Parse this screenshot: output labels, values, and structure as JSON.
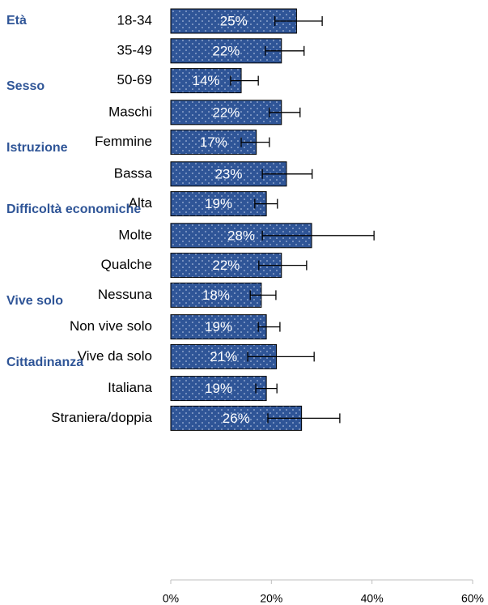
{
  "chart_data": {
    "type": "bar",
    "orientation": "horizontal",
    "color": "#2f5597",
    "groups": [
      {
        "name": "Età",
        "categories": [
          "18-34",
          "35-49",
          "50-69"
        ],
        "values": [
          25,
          22,
          14
        ],
        "value_labels": [
          "25%",
          "22%",
          "14%"
        ],
        "ci_low": [
          20.7,
          18.8,
          11.9
        ],
        "ci_high": [
          30.1,
          26.5,
          17.4
        ]
      },
      {
        "name": "Sesso",
        "categories": [
          "Maschi",
          "Femmine"
        ],
        "values": [
          22,
          17
        ],
        "value_labels": [
          "22%",
          "17%"
        ],
        "ci_low": [
          19.6,
          14.0
        ],
        "ci_high": [
          25.7,
          19.6
        ]
      },
      {
        "name": "Istruzione",
        "categories": [
          "Bassa",
          "Alta"
        ],
        "values": [
          23,
          19
        ],
        "value_labels": [
          "23%",
          "19%"
        ],
        "ci_low": [
          18.2,
          16.7
        ],
        "ci_high": [
          28.1,
          21.2
        ]
      },
      {
        "name": "Difficoltà economiche",
        "categories": [
          "Molte",
          "Qualche",
          "Nessuna"
        ],
        "values": [
          28,
          22,
          18
        ],
        "value_labels": [
          "28%",
          "22%",
          "18%"
        ],
        "ci_low": [
          18.2,
          17.5,
          15.8
        ],
        "ci_high": [
          40.4,
          27.0,
          20.9
        ]
      },
      {
        "name": "Vive solo",
        "categories": [
          "Non vive solo",
          "Vive da solo"
        ],
        "values": [
          19,
          21
        ],
        "value_labels": [
          "19%",
          "21%"
        ],
        "ci_low": [
          17.4,
          15.3
        ],
        "ci_high": [
          21.7,
          28.5
        ]
      },
      {
        "name": "Cittadinanza",
        "categories": [
          "Italiana",
          "Straniera/doppia"
        ],
        "values": [
          19,
          26
        ],
        "value_labels": [
          "19%",
          "26%"
        ],
        "ci_low": [
          16.9,
          19.3
        ],
        "ci_high": [
          21.1,
          33.6
        ]
      }
    ],
    "xlim": [
      0,
      60
    ],
    "xticks": [
      {
        "value": 0,
        "label": "0%"
      },
      {
        "value": 20,
        "label": "20%"
      },
      {
        "value": 40,
        "label": "40%"
      },
      {
        "value": 60,
        "label": "60%"
      }
    ]
  }
}
